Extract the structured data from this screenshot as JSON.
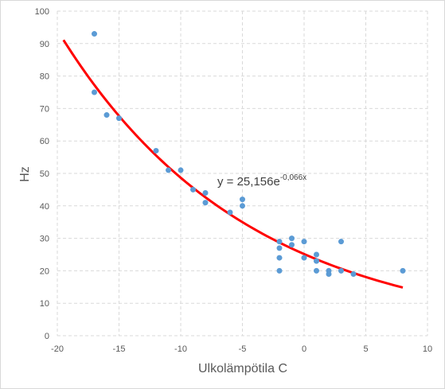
{
  "chart_data": {
    "type": "scatter",
    "title": "",
    "xlabel": "Ulkolämpötila C",
    "ylabel": "Hz",
    "xlim": [
      -20,
      10
    ],
    "ylim": [
      0,
      100
    ],
    "x_ticks": [
      -20,
      -15,
      -10,
      -5,
      0,
      5,
      10
    ],
    "y_ticks": [
      0,
      10,
      20,
      30,
      40,
      50,
      60,
      70,
      80,
      90,
      100
    ],
    "grid": "dashed",
    "legend": "none",
    "series": [
      {
        "color": "#5B9BD5",
        "points": [
          [
            -17,
            93
          ],
          [
            -17,
            75
          ],
          [
            -16,
            68
          ],
          [
            -15,
            67
          ],
          [
            -12,
            57
          ],
          [
            -11,
            51
          ],
          [
            -10,
            51
          ],
          [
            -9,
            45
          ],
          [
            -8,
            44
          ],
          [
            -8,
            41
          ],
          [
            -6,
            38
          ],
          [
            -5,
            42
          ],
          [
            -5,
            40
          ],
          [
            -2,
            29
          ],
          [
            -2,
            27
          ],
          [
            -2,
            24
          ],
          [
            -2,
            20
          ],
          [
            -1,
            30
          ],
          [
            -1,
            28
          ],
          [
            0,
            29
          ],
          [
            0,
            24
          ],
          [
            1,
            25
          ],
          [
            1,
            23
          ],
          [
            1,
            20
          ],
          [
            2,
            20
          ],
          [
            2,
            19
          ],
          [
            3,
            29
          ],
          [
            3,
            20
          ],
          [
            4,
            19
          ],
          [
            8,
            20
          ]
        ]
      }
    ],
    "trendline": {
      "type": "exponential",
      "a": 25.156,
      "b": -0.066,
      "x_range": [
        -19.5,
        8
      ],
      "color": "#FF0000"
    },
    "equation": {
      "base": "y = 25,156e",
      "exponent": "-0,066x"
    }
  }
}
